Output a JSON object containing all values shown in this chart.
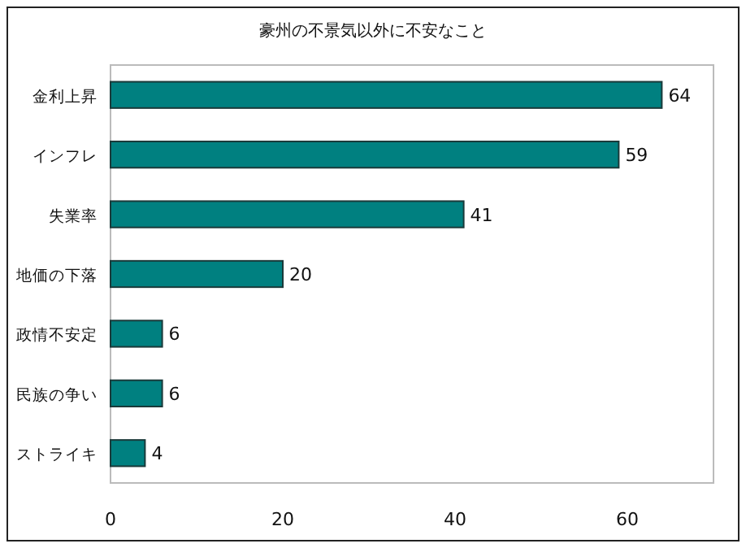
{
  "chart_data": {
    "type": "bar",
    "orientation": "horizontal",
    "title": "豪州の不景気以外に不安なこと",
    "categories": [
      "金利上昇",
      "インフレ",
      "失業率",
      "地価の下落",
      "政情不安定",
      "民族の争い",
      "ストライキ"
    ],
    "values": [
      64,
      59,
      41,
      20,
      6,
      6,
      4
    ],
    "color": "#008080",
    "data_labels": true,
    "xlim": [
      0,
      70
    ],
    "xticks": [
      0,
      20,
      40,
      60
    ],
    "grid": false
  }
}
